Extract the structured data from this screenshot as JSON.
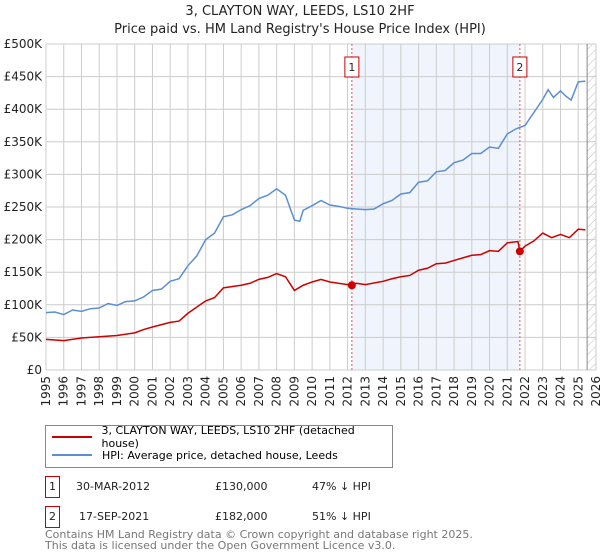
{
  "title": "3, CLAYTON WAY, LEEDS, LS10 2HF",
  "subtitle": "Price paid vs. HM Land Registry's House Price Index (HPI)",
  "chart_data": {
    "type": "line",
    "title": "3, CLAYTON WAY, LEEDS, LS10 2HF — Price paid vs. HM Land Registry's House Price Index (HPI)",
    "xlim": [
      1995,
      2026
    ],
    "ylim": [
      0,
      500000
    ],
    "x_ticks": [
      "1995",
      "1996",
      "1997",
      "1998",
      "1999",
      "2000",
      "2001",
      "2002",
      "2003",
      "2004",
      "2005",
      "2006",
      "2007",
      "2008",
      "2009",
      "2010",
      "2011",
      "2012",
      "2013",
      "2014",
      "2015",
      "2016",
      "2017",
      "2018",
      "2019",
      "2020",
      "2021",
      "2022",
      "2023",
      "2024",
      "2025",
      "2026"
    ],
    "y_ticks": [
      {
        "v": 0,
        "label": "£0"
      },
      {
        "v": 50000,
        "label": "£50K"
      },
      {
        "v": 100000,
        "label": "£100K"
      },
      {
        "v": 150000,
        "label": "£150K"
      },
      {
        "v": 200000,
        "label": "£200K"
      },
      {
        "v": 250000,
        "label": "£250K"
      },
      {
        "v": 300000,
        "label": "£300K"
      },
      {
        "v": 350000,
        "label": "£350K"
      },
      {
        "v": 400000,
        "label": "£400K"
      },
      {
        "v": 450000,
        "label": "£450K"
      },
      {
        "v": 500000,
        "label": "£500K"
      }
    ],
    "grid": true,
    "series": [
      {
        "name": "3, CLAYTON WAY, LEEDS, LS10 2HF (detached house)",
        "color": "#cc0000",
        "x": [
          1995,
          1996,
          1997,
          1998,
          1999,
          2000,
          2000.5,
          2001,
          2002,
          2002.5,
          2003,
          2004,
          2004.5,
          2005,
          2006,
          2006.5,
          2007,
          2007.5,
          2008,
          2008.5,
          2009,
          2009.5,
          2010,
          2010.5,
          2011,
          2012.24,
          2012.5,
          2013,
          2014,
          2014.5,
          2015,
          2015.5,
          2016,
          2016.5,
          2017,
          2017.5,
          2018,
          2018.5,
          2019,
          2019.5,
          2020,
          2020.5,
          2021,
          2021.6,
          2021.71,
          2022,
          2022.5,
          2023,
          2023.5,
          2024,
          2024.5,
          2025,
          2025.4
        ],
        "y": [
          47000,
          45000,
          49000,
          51000,
          53000,
          57000,
          62000,
          66000,
          73000,
          75000,
          87000,
          106000,
          111000,
          126000,
          130000,
          133000,
          139000,
          142000,
          148000,
          143000,
          122000,
          130000,
          135000,
          139000,
          135000,
          130000,
          133000,
          131000,
          136000,
          140000,
          143000,
          145000,
          153000,
          156000,
          163000,
          164000,
          168000,
          172000,
          176000,
          177000,
          183000,
          182000,
          195000,
          197000,
          182000,
          190000,
          198000,
          210000,
          203000,
          208000,
          203000,
          216000,
          215000
        ]
      },
      {
        "name": "HPI: Average price, detached house, Leeds",
        "color": "#5b8fd4",
        "x": [
          1995,
          1995.5,
          1996,
          1996.5,
          1997,
          1997.5,
          1998,
          1998.5,
          1999,
          1999.5,
          2000,
          2000.5,
          2001,
          2001.5,
          2002,
          2002.5,
          2003,
          2003.5,
          2004,
          2004.5,
          2005,
          2005.5,
          2006,
          2006.5,
          2007,
          2007.5,
          2008,
          2008.5,
          2009,
          2009.3,
          2009.5,
          2010,
          2010.5,
          2011,
          2011.5,
          2012,
          2012.5,
          2013,
          2013.5,
          2014,
          2014.5,
          2015,
          2015.5,
          2016,
          2016.5,
          2017,
          2017.5,
          2018,
          2018.5,
          2019,
          2019.5,
          2020,
          2020.5,
          2021,
          2021.5,
          2022,
          2022.5,
          2023,
          2023.3,
          2023.6,
          2024,
          2024.3,
          2024.6,
          2025,
          2025.4
        ],
        "y": [
          88000,
          89000,
          85000,
          92000,
          90000,
          94000,
          95000,
          102000,
          99000,
          105000,
          106000,
          112000,
          122000,
          124000,
          136000,
          140000,
          160000,
          175000,
          200000,
          210000,
          235000,
          238000,
          246000,
          252000,
          263000,
          268000,
          278000,
          268000,
          230000,
          228000,
          245000,
          252000,
          260000,
          253000,
          251000,
          248000,
          247000,
          246000,
          247000,
          255000,
          260000,
          270000,
          272000,
          288000,
          290000,
          304000,
          306000,
          318000,
          322000,
          332000,
          332000,
          342000,
          340000,
          362000,
          370000,
          375000,
          395000,
          415000,
          430000,
          418000,
          428000,
          420000,
          414000,
          442000,
          443000
        ]
      }
    ],
    "annotations": [
      {
        "label": "1",
        "x": 2012.24,
        "y": 130000
      },
      {
        "label": "2",
        "x": 2021.71,
        "y": 182000
      }
    ],
    "shaded_range": [
      2012.24,
      2021.71
    ],
    "data_end": 2025.5,
    "legend": "below"
  },
  "legend": {
    "items": [
      "3, CLAYTON WAY, LEEDS, LS10 2HF (detached house)",
      "HPI: Average price, detached house, Leeds"
    ]
  },
  "sales": [
    {
      "num": "1",
      "date": "30-MAR-2012",
      "price": "£130,000",
      "diff": "47% ↓ HPI"
    },
    {
      "num": "2",
      "date": "17-SEP-2021",
      "price": "£182,000",
      "diff": "51% ↓ HPI"
    }
  ],
  "footer": [
    "Contains HM Land Registry data © Crown copyright and database right 2025.",
    "This data is licensed under the Open Government Licence v3.0."
  ]
}
